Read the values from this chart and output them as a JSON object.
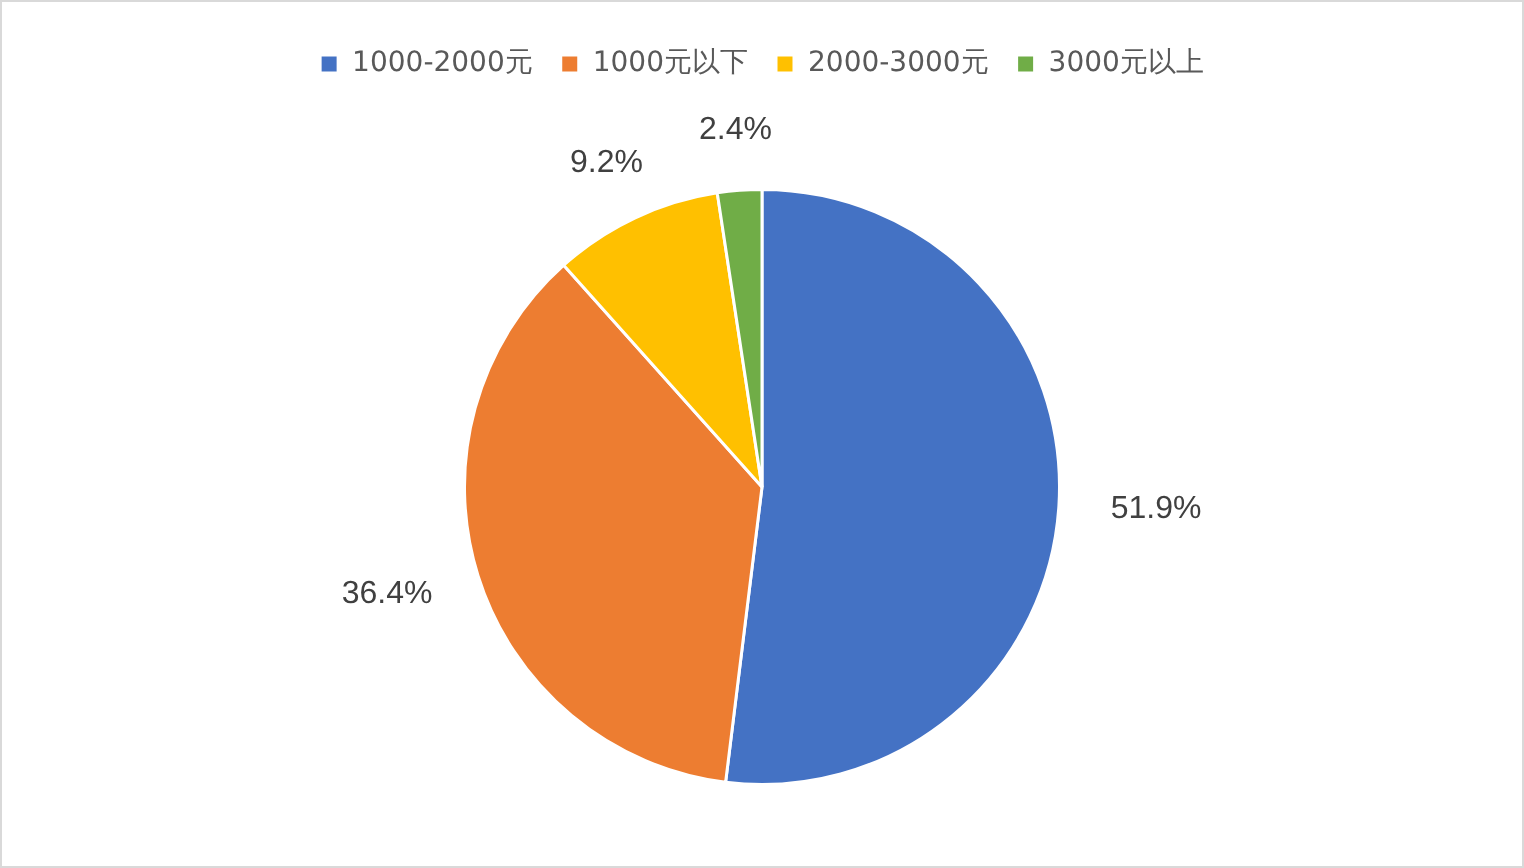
{
  "chart_data": {
    "type": "pie",
    "categories": [
      "1000-2000元",
      "1000元以下",
      "2000-3000元",
      "3000元以上"
    ],
    "values": [
      51.9,
      36.4,
      9.2,
      2.4
    ],
    "colors": [
      "#4472c4",
      "#ed7d31",
      "#ffc000",
      "#70ad47"
    ],
    "value_labels": [
      "51.9%",
      "36.4%",
      "9.2%",
      "2.4%"
    ],
    "legend": "top"
  }
}
